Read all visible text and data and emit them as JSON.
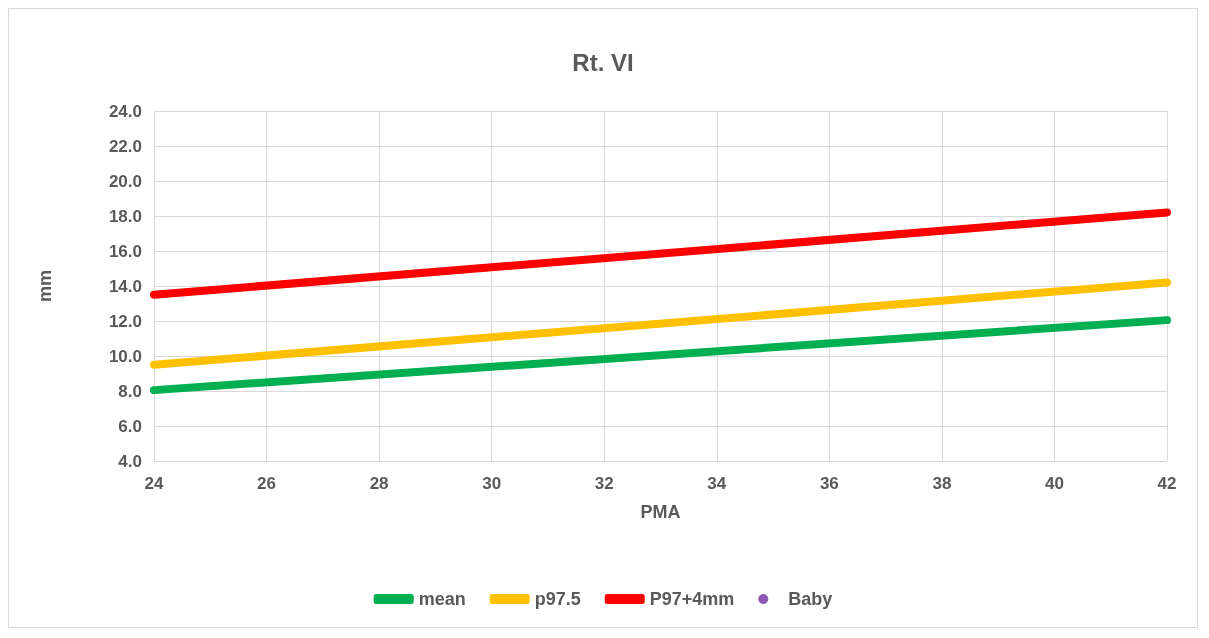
{
  "chart_data": {
    "type": "line",
    "title": "Rt. VI",
    "xlabel": "PMA",
    "ylabel": "mm",
    "x": [
      24,
      42
    ],
    "series": [
      {
        "name": "mean",
        "color": "#00b050",
        "values": [
          8.05,
          12.05
        ]
      },
      {
        "name": "p97.5",
        "color": "#ffc000",
        "values": [
          9.5,
          14.2
        ]
      },
      {
        "name": "P97+4mm",
        "color": "#ff0000",
        "values": [
          13.5,
          18.2
        ]
      },
      {
        "name": "Baby",
        "type": "scatter",
        "color": "#7030a0",
        "values": [
          null,
          null
        ]
      }
    ],
    "xlim": [
      24,
      42
    ],
    "xticks": [
      24,
      26,
      28,
      30,
      32,
      34,
      36,
      38,
      40,
      42
    ],
    "ylim": [
      4,
      24
    ],
    "yticks": [
      {
        "value": 4,
        "label": "4.0"
      },
      {
        "value": 6,
        "label": "6.0"
      },
      {
        "value": 8,
        "label": "8.0"
      },
      {
        "value": 10,
        "label": "10.0"
      },
      {
        "value": 12,
        "label": "12.0"
      },
      {
        "value": 14,
        "label": "14.0"
      },
      {
        "value": 16,
        "label": "16.0"
      },
      {
        "value": 18,
        "label": "18.0"
      },
      {
        "value": 20,
        "label": "20.0"
      },
      {
        "value": 22,
        "label": "22.0"
      },
      {
        "value": 24,
        "label": "24.0"
      }
    ],
    "grid": true,
    "legend": "bottom",
    "line_style": "solid"
  }
}
